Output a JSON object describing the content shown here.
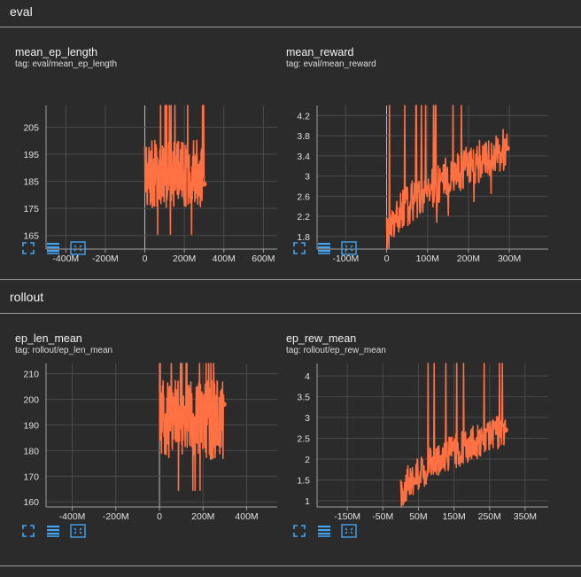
{
  "sections": [
    {
      "title": "eval"
    },
    {
      "title": "rollout"
    }
  ],
  "colors": {
    "series": "#ff7043",
    "grid": "#4a4a4a",
    "axis": "#9e9e9e",
    "zero": "#bdbdbd",
    "icon": "#42a5f5"
  },
  "icons": [
    "fullscreen-icon",
    "data-table-icon",
    "fit-domain-icon"
  ],
  "cards": [
    {
      "title": "mean_ep_length",
      "tag": "tag: eval/mean_ep_length",
      "chart_data": {
        "type": "line",
        "x_ticks": [
          "-400M",
          "-200M",
          "0",
          "200M",
          "400M",
          "600M"
        ],
        "x_tick_values": [
          -400,
          -200,
          0,
          200,
          400,
          600
        ],
        "xlim": [
          -500,
          670
        ],
        "y_ticks": [
          "165",
          "175",
          "185",
          "195",
          "205"
        ],
        "y_tick_values": [
          165,
          175,
          185,
          195,
          205
        ],
        "ylim": [
          160,
          213
        ],
        "x_range": [
          0,
          300
        ],
        "x_unit": "M steps",
        "center": 188,
        "spread": 9,
        "end_value": 184
      }
    },
    {
      "title": "mean_reward",
      "tag": "tag: eval/mean_reward",
      "chart_data": {
        "type": "line",
        "x_ticks": [
          "-100M",
          "0",
          "100M",
          "200M",
          "300M"
        ],
        "x_tick_values": [
          -100,
          0,
          100,
          200,
          300
        ],
        "xlim": [
          -170,
          395
        ],
        "y_ticks": [
          "1.8",
          "2.2",
          "2.6",
          "3",
          "3.4",
          "3.8",
          "4.2"
        ],
        "y_tick_values": [
          1.8,
          2.2,
          2.6,
          3.0,
          3.4,
          3.8,
          4.2
        ],
        "ylim": [
          1.55,
          4.4
        ],
        "x_range": [
          0,
          295
        ],
        "start_value": 1.8,
        "end_value": 3.55,
        "spread": 0.3
      }
    },
    {
      "title": "ep_len_mean",
      "tag": "tag: rollout/ep_len_mean",
      "chart_data": {
        "type": "line",
        "x_ticks": [
          "-400M",
          "-200M",
          "0",
          "200M",
          "400M"
        ],
        "x_tick_values": [
          -400,
          -200,
          0,
          200,
          400
        ],
        "xlim": [
          -520,
          540
        ],
        "y_ticks": [
          "160",
          "170",
          "180",
          "190",
          "200",
          "210"
        ],
        "y_tick_values": [
          160,
          170,
          180,
          190,
          200,
          210
        ],
        "ylim": [
          158,
          214
        ],
        "x_range": [
          0,
          295
        ],
        "center": 192,
        "spread": 11,
        "end_value": 198
      }
    },
    {
      "title": "ep_rew_mean",
      "tag": "tag: rollout/ep_rew_mean",
      "chart_data": {
        "type": "line",
        "x_ticks": [
          "-150M",
          "-50M",
          "50M",
          "150M",
          "250M",
          "350M"
        ],
        "x_tick_values": [
          -150,
          -50,
          50,
          150,
          250,
          350
        ],
        "xlim": [
          -235,
          415
        ],
        "y_ticks": [
          "1",
          "1.5",
          "2",
          "2.5",
          "3",
          "3.5",
          "4"
        ],
        "y_tick_values": [
          1.0,
          1.5,
          2.0,
          2.5,
          3.0,
          3.5,
          4.0
        ],
        "ylim": [
          0.85,
          4.3
        ],
        "x_range": [
          0,
          295
        ],
        "start_value": 1.1,
        "end_value": 2.7,
        "spread": 0.3
      }
    }
  ]
}
